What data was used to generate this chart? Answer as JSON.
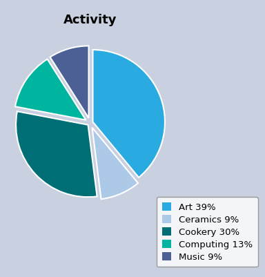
{
  "title": "Activity",
  "labels": [
    "Art 39%",
    "Ceramics 9%",
    "Cookery 30%",
    "Computing 13%",
    "Music 9%"
  ],
  "values": [
    39,
    9,
    30,
    13,
    9
  ],
  "colors": [
    "#29aae1",
    "#adc9e8",
    "#006f75",
    "#00b5a0",
    "#4d6096"
  ],
  "explode": [
    0.04,
    0.07,
    0.04,
    0.07,
    0.07
  ],
  "background_color": "#c9d0e0",
  "startangle": 90,
  "title_fontsize": 13,
  "legend_fontsize": 9.5
}
